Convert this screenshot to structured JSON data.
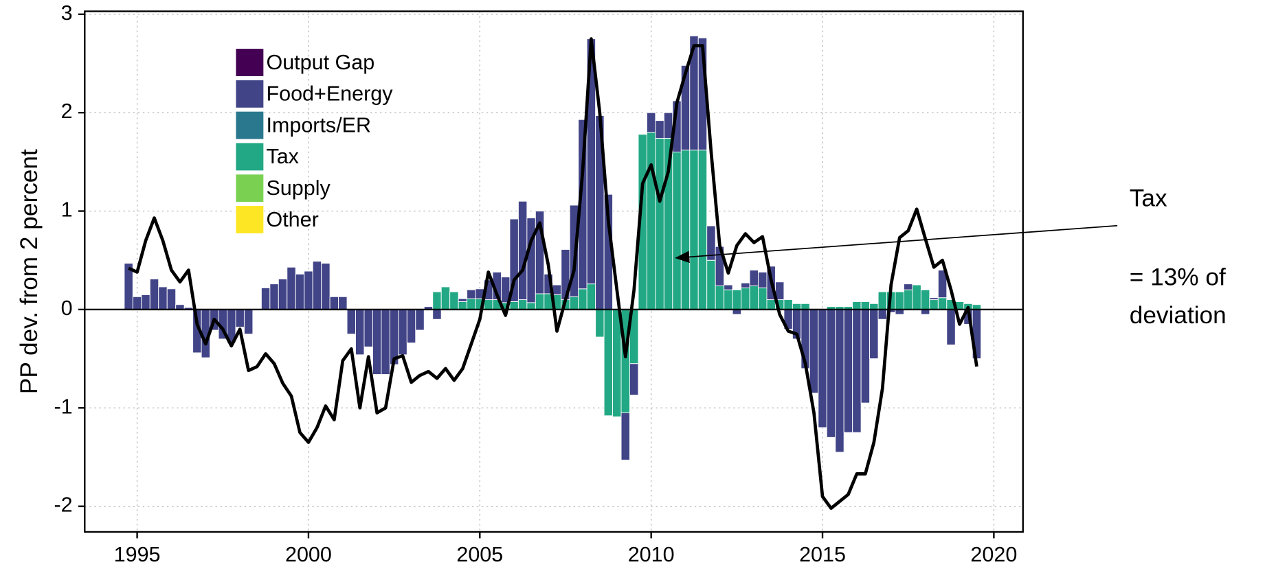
{
  "chart_data": {
    "type": "stacked-bar-line",
    "y_label": "PP dev. from 2 percent",
    "x": [
      1994.75,
      1995,
      1995.25,
      1995.5,
      1995.75,
      1996,
      1996.25,
      1996.5,
      1996.75,
      1997,
      1997.25,
      1997.5,
      1997.75,
      1998,
      1998.25,
      1998.5,
      1998.75,
      1999,
      1999.25,
      1999.5,
      1999.75,
      2000,
      2000.25,
      2000.5,
      2000.75,
      2001,
      2001.25,
      2001.5,
      2001.75,
      2002,
      2002.25,
      2002.5,
      2002.75,
      2003,
      2003.25,
      2003.5,
      2003.75,
      2004,
      2004.25,
      2004.5,
      2004.75,
      2005,
      2005.25,
      2005.5,
      2005.75,
      2006,
      2006.25,
      2006.5,
      2006.75,
      2007,
      2007.25,
      2007.5,
      2007.75,
      2008,
      2008.25,
      2008.5,
      2008.75,
      2009,
      2009.25,
      2009.5,
      2009.75,
      2010,
      2010.25,
      2010.5,
      2010.75,
      2011,
      2011.25,
      2011.5,
      2011.75,
      2012,
      2012.25,
      2012.5,
      2012.75,
      2013,
      2013.25,
      2013.5,
      2013.75,
      2014,
      2014.25,
      2014.5,
      2014.75,
      2015,
      2015.25,
      2015.5,
      2015.75,
      2016,
      2016.25,
      2016.5,
      2016.75,
      2017,
      2017.25,
      2017.5,
      2017.75,
      2018,
      2018.25,
      2018.5,
      2018.75,
      2019,
      2019.25,
      2019.5
    ],
    "bar_width": 0.25,
    "series": [
      {
        "name": "Output Gap",
        "color": "#440154",
        "values": [
          0,
          0,
          0,
          0,
          0,
          0,
          0,
          0,
          0,
          0,
          0,
          0,
          0,
          0,
          0,
          0,
          0,
          0,
          0,
          0,
          0,
          0,
          0,
          0,
          0,
          0,
          0,
          0,
          0,
          0,
          0,
          0,
          0,
          0,
          0,
          0,
          0,
          0,
          0,
          0,
          0,
          0,
          0,
          0,
          0,
          0,
          0,
          0,
          0,
          0,
          0,
          0,
          0,
          0,
          0,
          0,
          0,
          0,
          0,
          0,
          0,
          0,
          0,
          0,
          0,
          0,
          0,
          0,
          0,
          0,
          0,
          0,
          0,
          0,
          0,
          0,
          0,
          0,
          0,
          0,
          0,
          0,
          0,
          0,
          0,
          0,
          0,
          0,
          0,
          0,
          0,
          0,
          0,
          0,
          0,
          0,
          0,
          0,
          0,
          0
        ]
      },
      {
        "name": "Food+Energy",
        "color": "#414487",
        "values": [
          0.47,
          0.13,
          0.15,
          0.31,
          0.23,
          0.21,
          0.05,
          0.02,
          -0.44,
          -0.49,
          -0.21,
          -0.3,
          -0.34,
          -0.18,
          -0.25,
          0,
          0.22,
          0.26,
          0.31,
          0.43,
          0.36,
          0.39,
          0.49,
          0.47,
          0.13,
          0.13,
          -0.25,
          -0.46,
          -0.38,
          -0.66,
          -0.66,
          -0.56,
          -0.46,
          -0.34,
          -0.21,
          0.03,
          -0.1,
          0,
          0,
          0.03,
          0.09,
          0.1,
          0.2,
          0.28,
          0.26,
          0.84,
          1.0,
          0.86,
          0.84,
          0.2,
          0.1,
          0.51,
          0.93,
          1.72,
          2.49,
          1.97,
          1.17,
          0,
          -0.48,
          -0.32,
          0,
          0.2,
          0.18,
          0.26,
          0.52,
          0.86,
          1.16,
          1.14,
          0.35,
          0.4,
          0.05,
          -0.05,
          0.05,
          0.16,
          0.16,
          0.34,
          0.18,
          -0.2,
          -0.3,
          -0.6,
          -0.85,
          -1.2,
          -1.3,
          -1.45,
          -1.25,
          -1.25,
          -0.95,
          -0.5,
          -0.1,
          -0.03,
          -0.05,
          0.06,
          0,
          -0.05,
          0.02,
          0.28,
          -0.36,
          0,
          -0.15,
          -0.5
        ]
      },
      {
        "name": "Imports/ER",
        "color": "#2a788e",
        "values": [
          0,
          0,
          0,
          0,
          0,
          0,
          0,
          0,
          0,
          0,
          0,
          0,
          0,
          0,
          0,
          0,
          0,
          0,
          0,
          0,
          0,
          0,
          0,
          0,
          0,
          0,
          0,
          0,
          0,
          0,
          0,
          0,
          0,
          0,
          0,
          0,
          0,
          0,
          0,
          0,
          0,
          0,
          0,
          0,
          0,
          0,
          0,
          0,
          0,
          0,
          0,
          0,
          0,
          0,
          0,
          0,
          0,
          0,
          0,
          0,
          0,
          0,
          0,
          0,
          0,
          0,
          0,
          0,
          0,
          0,
          0,
          0,
          0,
          0,
          0,
          0,
          0,
          0,
          0,
          0,
          0,
          0,
          0,
          0,
          0,
          0,
          0,
          0,
          0,
          0,
          0,
          0,
          0,
          0,
          0,
          0,
          0,
          0,
          0,
          0
        ]
      },
      {
        "name": "Tax",
        "color": "#22a884",
        "values": [
          0,
          0,
          0,
          0,
          0,
          0,
          0,
          0,
          0,
          0,
          0,
          0,
          0,
          0,
          0,
          0,
          0,
          0,
          0,
          0,
          0,
          0,
          0,
          0,
          0,
          0,
          0,
          0,
          0,
          0,
          0,
          0,
          0,
          0,
          0,
          0,
          0.18,
          0.23,
          0.18,
          0.08,
          0.11,
          0.11,
          0.1,
          0.1,
          0.07,
          0.08,
          0.1,
          0.07,
          0.16,
          0.16,
          0.15,
          0.1,
          0.13,
          0.21,
          0.26,
          -0.28,
          -1.08,
          -1.09,
          -1.05,
          -0.55,
          1.78,
          1.8,
          1.74,
          1.74,
          1.6,
          1.62,
          1.62,
          1.62,
          0.5,
          0.24,
          0.2,
          0.2,
          0.22,
          0.24,
          0.22,
          0.1,
          0.1,
          0.1,
          0.06,
          0.06,
          0,
          0,
          0.03,
          0.03,
          0.03,
          0.08,
          0.08,
          0.06,
          0.18,
          0.18,
          0.18,
          0.2,
          0.25,
          0.2,
          0.1,
          0.12,
          0.1,
          0.08,
          0.06,
          0.05
        ]
      },
      {
        "name": "Supply",
        "color": "#7ad151",
        "values": [
          0,
          0,
          0,
          0,
          0,
          0,
          0,
          0,
          0,
          0,
          0,
          0,
          0,
          0,
          0,
          0,
          0,
          0,
          0,
          0,
          0,
          0,
          0,
          0,
          0,
          0,
          0,
          0,
          0,
          0,
          0,
          0,
          0,
          0,
          0,
          0,
          0,
          0,
          0,
          0,
          0,
          0,
          0,
          0,
          0,
          0,
          0,
          0,
          0,
          0,
          0,
          0,
          0,
          0,
          0,
          0,
          0,
          0,
          0,
          0,
          0,
          0,
          0,
          0,
          0,
          0,
          0,
          0,
          0,
          0,
          0,
          0,
          0,
          0,
          0,
          0,
          0,
          0,
          0,
          0,
          0,
          0,
          0,
          0,
          0,
          0,
          0,
          0,
          0,
          0,
          0,
          0,
          0,
          0,
          0,
          0,
          0,
          0,
          0,
          0
        ]
      },
      {
        "name": "Other",
        "color": "#fde725",
        "values": [
          0,
          0,
          0,
          0,
          0,
          0,
          0,
          0,
          0,
          0,
          0,
          0,
          0,
          0,
          0,
          0,
          0,
          0,
          0,
          0,
          0,
          0,
          0,
          0,
          0,
          0,
          0,
          0,
          0,
          0,
          0,
          0,
          0,
          0,
          0,
          0,
          0,
          0,
          0,
          0,
          0,
          0,
          0,
          0,
          0,
          0,
          0,
          0,
          0,
          0,
          0,
          0,
          0,
          0,
          0,
          0,
          0,
          0,
          0,
          0,
          0,
          0,
          0,
          0,
          0,
          0,
          0,
          0,
          0,
          0,
          0,
          0,
          0,
          0,
          0,
          0,
          0,
          0,
          0,
          0,
          0,
          0,
          0,
          0,
          0,
          0,
          0,
          0,
          0,
          0,
          0,
          0,
          0,
          0,
          0,
          0,
          0,
          0,
          0,
          0
        ]
      }
    ],
    "line": {
      "color": "#000000",
      "values": [
        0.42,
        0.38,
        0.7,
        0.93,
        0.7,
        0.4,
        0.28,
        0.4,
        -0.15,
        -0.35,
        -0.1,
        -0.2,
        -0.37,
        -0.2,
        -0.62,
        -0.58,
        -0.45,
        -0.55,
        -0.75,
        -0.88,
        -1.25,
        -1.35,
        -1.2,
        -0.98,
        -1.12,
        -0.52,
        -0.4,
        -1.0,
        -0.48,
        -1.05,
        -1.0,
        -0.5,
        -0.47,
        -0.74,
        -0.67,
        -0.63,
        -0.7,
        -0.6,
        -0.72,
        -0.6,
        -0.35,
        -0.1,
        0.38,
        0.15,
        -0.06,
        0.3,
        0.4,
        0.7,
        0.88,
        0.45,
        -0.22,
        0.1,
        0.4,
        1.4,
        2.75,
        2.0,
        0.9,
        0.2,
        -0.48,
        0.2,
        1.28,
        1.47,
        1.1,
        1.4,
        2.1,
        2.4,
        2.68,
        2.68,
        1.6,
        0.65,
        0.37,
        0.65,
        0.77,
        0.68,
        0.74,
        0.3,
        -0.05,
        -0.22,
        -0.25,
        -0.55,
        -1.05,
        -1.9,
        -2.02,
        -1.95,
        -1.88,
        -1.67,
        -1.67,
        -1.35,
        -0.8,
        0.25,
        0.73,
        0.8,
        1.02,
        0.72,
        0.43,
        0.5,
        0.2,
        -0.15,
        0.02,
        -0.58
      ]
    },
    "xlim": [
      1993.47,
      2020.85
    ],
    "xticks": [
      1995,
      2000,
      2005,
      2010,
      2015,
      2020
    ],
    "ylim": [
      -2.26,
      3.03
    ],
    "yticks": [
      -2,
      -1,
      0,
      1,
      2,
      3
    ],
    "grid": true,
    "legend": "upper left",
    "annotation": [
      "Tax",
      "= 13% of",
      "deviation"
    ]
  }
}
